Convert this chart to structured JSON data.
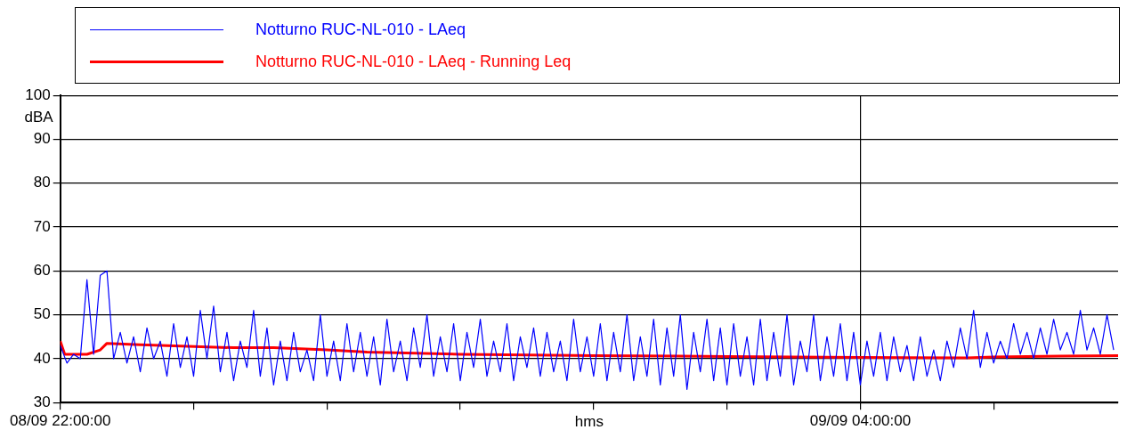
{
  "chart_data": {
    "type": "line",
    "xlabel": "hms",
    "ylabel": "dBA",
    "xlim": [
      "--09-08T22:00",
      "--09-09T05:56"
    ],
    "xticks": [
      {
        "value": "--09-08T22:00",
        "label": "08/09 22:00:00"
      },
      {
        "value": "--09-08T23:00",
        "label": null
      },
      {
        "value": "--09-09T00:00",
        "label": null
      },
      {
        "value": "--09-09T01:00",
        "label": null
      },
      {
        "value": "--09-09T02:00",
        "label": null
      },
      {
        "value": "--09-09T03:00",
        "label": null
      },
      {
        "value": "--09-09T04:00",
        "label": "09/09 04:00:00"
      },
      {
        "value": "--09-09T05:00",
        "label": null
      }
    ],
    "ylim": [
      30,
      100
    ],
    "yticks": [
      30,
      40,
      50,
      60,
      70,
      80,
      90,
      100
    ],
    "grid": true,
    "legend": "top",
    "marker": "none",
    "line_style": "solid",
    "series": [
      {
        "name": "Notturno RUC-NL-010 - LAeq",
        "color": "#0000ff",
        "x": [
          "--09-08T22:00",
          "--09-08T22:03",
          "--09-08T22:06",
          "--09-08T22:09",
          "--09-08T22:12",
          "--09-08T22:15",
          "--09-08T22:18",
          "--09-08T22:21",
          "--09-08T22:24",
          "--09-08T22:27",
          "--09-08T22:30",
          "--09-08T22:33",
          "--09-08T22:36",
          "--09-08T22:39",
          "--09-08T22:42",
          "--09-08T22:45",
          "--09-08T22:48",
          "--09-08T22:51",
          "--09-08T22:54",
          "--09-08T22:57",
          "--09-08T23:00",
          "--09-08T23:03",
          "--09-08T23:06",
          "--09-08T23:09",
          "--09-08T23:12",
          "--09-08T23:15",
          "--09-08T23:18",
          "--09-08T23:21",
          "--09-08T23:24",
          "--09-08T23:27",
          "--09-08T23:30",
          "--09-08T23:33",
          "--09-08T23:36",
          "--09-08T23:39",
          "--09-08T23:42",
          "--09-08T23:45",
          "--09-08T23:48",
          "--09-08T23:51",
          "--09-08T23:54",
          "--09-08T23:57",
          "--09-09T00:00",
          "--09-09T00:03",
          "--09-09T00:06",
          "--09-09T00:09",
          "--09-09T00:12",
          "--09-09T00:15",
          "--09-09T00:18",
          "--09-09T00:21",
          "--09-09T00:24",
          "--09-09T00:27",
          "--09-09T00:30",
          "--09-09T00:33",
          "--09-09T00:36",
          "--09-09T00:39",
          "--09-09T00:42",
          "--09-09T00:45",
          "--09-09T00:48",
          "--09-09T00:51",
          "--09-09T00:54",
          "--09-09T00:57",
          "--09-09T01:00",
          "--09-09T01:03",
          "--09-09T01:06",
          "--09-09T01:09",
          "--09-09T01:12",
          "--09-09T01:15",
          "--09-09T01:18",
          "--09-09T01:21",
          "--09-09T01:24",
          "--09-09T01:27",
          "--09-09T01:30",
          "--09-09T01:33",
          "--09-09T01:36",
          "--09-09T01:39",
          "--09-09T01:42",
          "--09-09T01:45",
          "--09-09T01:48",
          "--09-09T01:51",
          "--09-09T01:54",
          "--09-09T01:57",
          "--09-09T02:00",
          "--09-09T02:03",
          "--09-09T02:06",
          "--09-09T02:09",
          "--09-09T02:12",
          "--09-09T02:15",
          "--09-09T02:18",
          "--09-09T02:21",
          "--09-09T02:24",
          "--09-09T02:27",
          "--09-09T02:30",
          "--09-09T02:33",
          "--09-09T02:36",
          "--09-09T02:39",
          "--09-09T02:42",
          "--09-09T02:45",
          "--09-09T02:48",
          "--09-09T02:51",
          "--09-09T02:54",
          "--09-09T02:57",
          "--09-09T03:00",
          "--09-09T03:03",
          "--09-09T03:06",
          "--09-09T03:09",
          "--09-09T03:12",
          "--09-09T03:15",
          "--09-09T03:18",
          "--09-09T03:21",
          "--09-09T03:24",
          "--09-09T03:27",
          "--09-09T03:30",
          "--09-09T03:33",
          "--09-09T03:36",
          "--09-09T03:39",
          "--09-09T03:42",
          "--09-09T03:45",
          "--09-09T03:48",
          "--09-09T03:51",
          "--09-09T03:54",
          "--09-09T03:57",
          "--09-09T04:00",
          "--09-09T04:03",
          "--09-09T04:06",
          "--09-09T04:09",
          "--09-09T04:12",
          "--09-09T04:15",
          "--09-09T04:18",
          "--09-09T04:21",
          "--09-09T04:24",
          "--09-09T04:27",
          "--09-09T04:30",
          "--09-09T04:33",
          "--09-09T04:36",
          "--09-09T04:39",
          "--09-09T04:42",
          "--09-09T04:45",
          "--09-09T04:48",
          "--09-09T04:51",
          "--09-09T04:54",
          "--09-09T04:57",
          "--09-09T05:00",
          "--09-09T05:03",
          "--09-09T05:06",
          "--09-09T05:09",
          "--09-09T05:12",
          "--09-09T05:15",
          "--09-09T05:18",
          "--09-09T05:21",
          "--09-09T05:24",
          "--09-09T05:27",
          "--09-09T05:30",
          "--09-09T05:33",
          "--09-09T05:36",
          "--09-09T05:39",
          "--09-09T05:42",
          "--09-09T05:45",
          "--09-09T05:48",
          "--09-09T05:51",
          "--09-09T05:54"
        ],
        "values": [
          43,
          39,
          41,
          40,
          58,
          41,
          59,
          60,
          40,
          46,
          39,
          45,
          37,
          47,
          40,
          44,
          36,
          48,
          38,
          45,
          36,
          51,
          40,
          52,
          37,
          46,
          35,
          44,
          38,
          51,
          36,
          47,
          34,
          44,
          35,
          46,
          37,
          42,
          35,
          50,
          36,
          44,
          35,
          48,
          37,
          46,
          36,
          45,
          34,
          49,
          37,
          44,
          35,
          47,
          38,
          50,
          36,
          45,
          37,
          48,
          35,
          46,
          38,
          49,
          36,
          44,
          37,
          48,
          35,
          45,
          38,
          47,
          36,
          46,
          37,
          44,
          35,
          49,
          37,
          45,
          36,
          48,
          35,
          46,
          37,
          50,
          35,
          45,
          36,
          49,
          34,
          47,
          36,
          50,
          33,
          46,
          37,
          49,
          35,
          47,
          34,
          48,
          36,
          45,
          34,
          49,
          35,
          46,
          36,
          50,
          34,
          44,
          37,
          50,
          35,
          45,
          36,
          48,
          35,
          46,
          34,
          44,
          36,
          46,
          35,
          45,
          37,
          43,
          35,
          45,
          36,
          42,
          35,
          44,
          38,
          47,
          40,
          51,
          38,
          46,
          39,
          44,
          40,
          48,
          41,
          46,
          40,
          47,
          41,
          49,
          42,
          46,
          41,
          51,
          42,
          47,
          41,
          50,
          42
        ]
      },
      {
        "name": "Notturno RUC-NL-010 - LAeq - Running Leq",
        "color": "#ff0000",
        "x": [
          "--09-08T22:00",
          "--09-08T22:02",
          "--09-08T22:12",
          "--09-08T22:18",
          "--09-08T22:21",
          "--09-08T22:36",
          "--09-08T23:18",
          "--09-08T23:36",
          "--09-09T00:00",
          "--09-09T00:18",
          "--09-09T01:00",
          "--09-09T02:00",
          "--09-09T03:00",
          "--09-09T04:00",
          "--09-09T04:48",
          "--09-09T05:00",
          "--09-09T05:30",
          "--09-09T05:56"
        ],
        "values": [
          44,
          41,
          41,
          42,
          43.5,
          43.2,
          42.5,
          42.5,
          42,
          41.5,
          41,
          40.7,
          40.5,
          40.3,
          40.2,
          40.4,
          40.6,
          40.7
        ]
      }
    ]
  }
}
